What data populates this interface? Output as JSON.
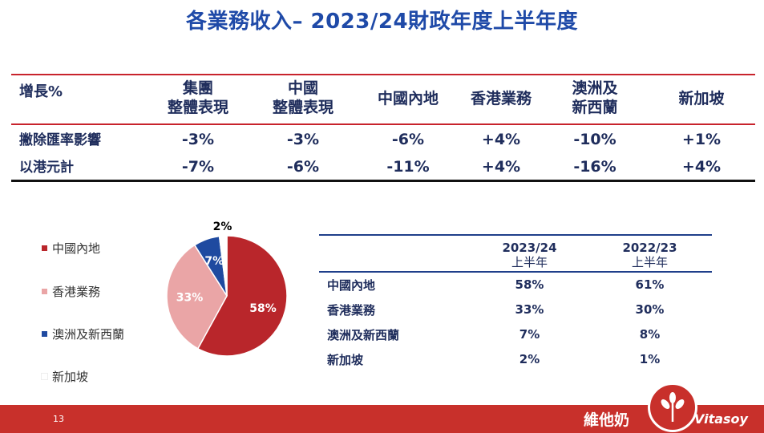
{
  "title": "各業務收入– 2023/24財政年度上半年度",
  "growth_table": {
    "header_label": "增長%",
    "columns": [
      {
        "line1": "集團",
        "line2": "整體表現"
      },
      {
        "line1": "中國",
        "line2": "整體表現"
      },
      {
        "line1": "中國內地",
        "line2": ""
      },
      {
        "line1": "香港業務",
        "line2": ""
      },
      {
        "line1": "澳洲及",
        "line2": "新西蘭"
      },
      {
        "line1": "新加坡",
        "line2": ""
      }
    ],
    "rows": [
      {
        "label": "撇除匯率影響",
        "values": [
          "-3%",
          "-3%",
          "-6%",
          "+4%",
          "-10%",
          "+1%"
        ]
      },
      {
        "label": "以港元計",
        "values": [
          "-7%",
          "-6%",
          "-11%",
          "+4%",
          "-16%",
          "+4%"
        ]
      }
    ]
  },
  "chart_data": {
    "type": "pie",
    "categories": [
      "中國內地",
      "香港業務",
      "澳洲及新西蘭",
      "新加坡"
    ],
    "values": [
      58,
      33,
      7,
      2
    ],
    "labels": [
      "58%",
      "33%",
      "7%",
      "2%"
    ],
    "colors": [
      "#b9262b",
      "#eaa5a6",
      "#1f4aa0",
      "#ffffff"
    ],
    "legend_position": "left"
  },
  "legend": [
    {
      "label": "中國內地",
      "color": "#b9262b"
    },
    {
      "label": "香港業務",
      "color": "#eaa5a6"
    },
    {
      "label": "澳洲及新西蘭",
      "color": "#1f4aa0"
    },
    {
      "label": "新加坡",
      "color": "#ffffff"
    }
  ],
  "share_table": {
    "col1": {
      "line1": "2023/24",
      "line2": "上半年"
    },
    "col2": {
      "line1": "2022/23",
      "line2": "上半年"
    },
    "rows": [
      {
        "label": "中國內地",
        "v1": "58%",
        "v2": "61%"
      },
      {
        "label": "香港業務",
        "v1": "33%",
        "v2": "30%"
      },
      {
        "label": "澳洲及新西蘭",
        "v1": "7%",
        "v2": "8%"
      },
      {
        "label": "新加坡",
        "v1": "2%",
        "v2": "1%"
      }
    ]
  },
  "footer": {
    "page_number": "13",
    "brand_cn": "維他奶",
    "brand_en": "Vitasoy"
  }
}
